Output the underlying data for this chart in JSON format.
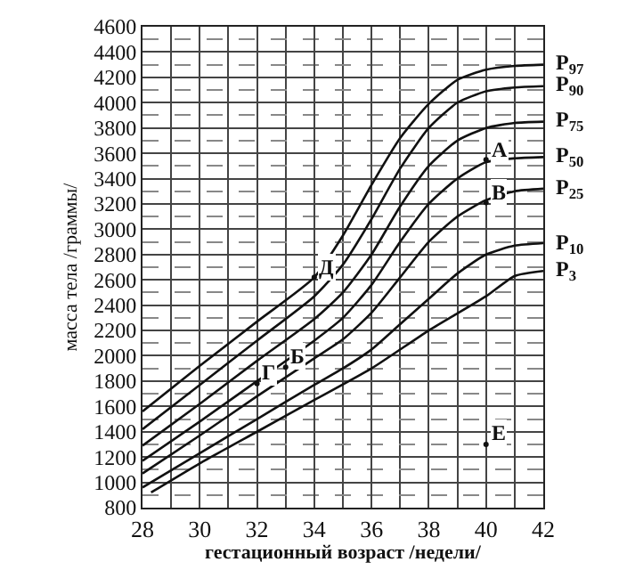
{
  "chart_data": {
    "type": "line",
    "xlabel": "гестационный возраст /недели/",
    "ylabel": "масса тела /граммы/",
    "x": [
      28,
      30,
      32,
      34,
      35,
      36,
      37,
      38,
      39,
      40,
      41,
      42
    ],
    "series": [
      {
        "name": "P$_{97}$",
        "color": "#111111",
        "values": [
          1560,
          1920,
          2270,
          2620,
          2950,
          3350,
          3720,
          3990,
          4180,
          4260,
          4290,
          4300
        ]
      },
      {
        "name": "P$_{90}$",
        "color": "#111111",
        "values": [
          1420,
          1770,
          2120,
          2470,
          2720,
          3080,
          3480,
          3800,
          4000,
          4090,
          4120,
          4130
        ]
      },
      {
        "name": "P$_{75}$",
        "color": "#111111",
        "values": [
          1290,
          1620,
          1960,
          2290,
          2500,
          2800,
          3180,
          3500,
          3700,
          3800,
          3840,
          3850
        ]
      },
      {
        "name": "P$_{50}$",
        "color": "#111111",
        "values": [
          1170,
          1480,
          1800,
          2120,
          2300,
          2560,
          2900,
          3200,
          3400,
          3530,
          3560,
          3570
        ]
      },
      {
        "name": "P$_{25}$",
        "color": "#111111",
        "values": [
          1070,
          1370,
          1680,
          1980,
          2130,
          2340,
          2620,
          2900,
          3100,
          3230,
          3300,
          3320
        ]
      },
      {
        "name": "P$_{10}$",
        "color": "#111111",
        "values": [
          960,
          1230,
          1500,
          1770,
          1900,
          2050,
          2250,
          2450,
          2650,
          2800,
          2870,
          2890
        ]
      },
      {
        "name": "P$_{3}$",
        "color": "#111111",
        "x": [
          28.3,
          30,
          32,
          34,
          36,
          38,
          40,
          41,
          42
        ],
        "values": [
          920,
          1150,
          1400,
          1650,
          1900,
          2200,
          2470,
          2630,
          2670
        ]
      }
    ],
    "annotations": [
      {
        "text": "А",
        "x": 40,
        "y": 3550
      },
      {
        "text": "В",
        "x": 40,
        "y": 3210
      },
      {
        "text": "Б",
        "x": 33,
        "y": 1910
      },
      {
        "text": "Г",
        "x": 32,
        "y": 1780
      },
      {
        "text": "Д",
        "x": 34,
        "y": 2620
      },
      {
        "text": "Е",
        "x": 40,
        "y": 1300
      }
    ],
    "xlim": [
      28,
      42
    ],
    "xticks": [
      28,
      {
        "value": 29,
        "label": null
      },
      30,
      {
        "value": 31,
        "label": null
      },
      32,
      {
        "value": 33,
        "label": null
      },
      34,
      {
        "value": 35,
        "label": null
      },
      36,
      {
        "value": 37,
        "label": null
      },
      38,
      {
        "value": 39,
        "label": null
      },
      40,
      {
        "value": 41,
        "label": null
      },
      42
    ],
    "ylim": [
      800,
      4600
    ],
    "yticks": [
      800,
      {
        "value": 900,
        "label": null
      },
      1000,
      {
        "value": 1100,
        "label": null
      },
      1200,
      {
        "value": 1300,
        "label": null
      },
      1400,
      {
        "value": 1500,
        "label": null
      },
      1600,
      {
        "value": 1700,
        "label": null
      },
      1800,
      {
        "value": 1900,
        "label": null
      },
      2000,
      {
        "value": 2100,
        "label": null
      },
      2200,
      {
        "value": 2300,
        "label": null
      },
      2400,
      {
        "value": 2500,
        "label": null
      },
      2600,
      {
        "value": 2700,
        "label": null
      },
      2800,
      {
        "value": 2900,
        "label": null
      },
      3000,
      {
        "value": 3100,
        "label": null
      },
      3200,
      {
        "value": 3300,
        "label": null
      },
      3400,
      {
        "value": 3500,
        "label": null
      },
      3600,
      {
        "value": 3700,
        "label": null
      },
      3800,
      {
        "value": 3900,
        "label": null
      },
      4000,
      {
        "value": 4100,
        "label": null
      },
      4200,
      {
        "value": 4300,
        "label": null
      },
      4400,
      {
        "value": 4500,
        "label": null
      },
      4600
    ],
    "grid": true,
    "legend": false,
    "marker": "none",
    "line_style": "solid"
  }
}
